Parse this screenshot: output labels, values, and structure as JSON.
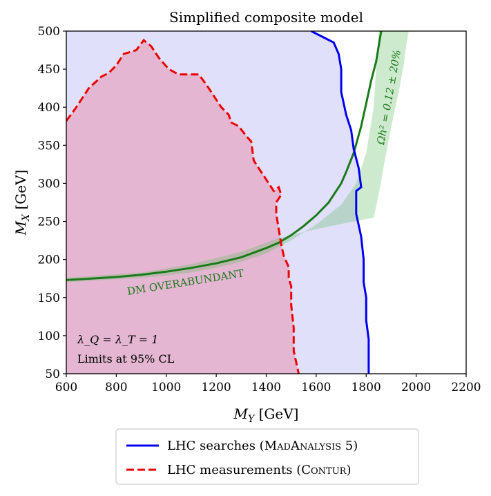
{
  "chart_data": {
    "type": "line",
    "title": "Simplified composite model",
    "xlabel": "M_Y [GeV]",
    "ylabel": "M_X [GeV]",
    "xlim": [
      600,
      2200
    ],
    "ylim": [
      50,
      500
    ],
    "xticks": [
      600,
      800,
      1000,
      1200,
      1400,
      1600,
      1800,
      2000,
      2200
    ],
    "yticks": [
      50,
      100,
      150,
      200,
      250,
      300,
      350,
      400,
      450,
      500
    ],
    "series": [
      {
        "name": "LHC searches (MadAnalysis 5)",
        "label_main": "LHC searches (",
        "label_sc1": "M",
        "label_sc2": "AD",
        "label_sc3": "A",
        "label_sc4": "NALYSIS",
        "label_end": " 5)",
        "style": "solid",
        "color": "#0000ee",
        "x": [
          1580,
          1670,
          1690,
          1700,
          1700,
          1720,
          1740,
          1750,
          1770,
          1780,
          1760,
          1760,
          1780,
          1790,
          1790,
          1800,
          1800,
          1810,
          1810
        ],
        "y": [
          500,
          485,
          470,
          450,
          420,
          390,
          370,
          345,
          320,
          295,
          290,
          260,
          230,
          200,
          170,
          150,
          120,
          95,
          50
        ]
      },
      {
        "name": "LHC measurements (Contur)",
        "label_main": "LHC measurements (",
        "label_sc1": "C",
        "label_sc2": "ONTUR",
        "label_end": ")",
        "style": "dashed",
        "color": "#ee0000",
        "x": [
          600,
          640,
          690,
          740,
          770,
          800,
          830,
          880,
          910,
          940,
          970,
          1010,
          1050,
          1070,
          1090,
          1130,
          1160,
          1190,
          1220,
          1250,
          1260,
          1290,
          1320,
          1340,
          1350,
          1370,
          1390,
          1410,
          1430,
          1450,
          1460,
          1440,
          1440,
          1450,
          1460,
          1470,
          1490,
          1490,
          1500,
          1500,
          1510,
          1510,
          1530
        ],
        "y": [
          382,
          400,
          425,
          440,
          445,
          455,
          470,
          475,
          488,
          480,
          465,
          450,
          443,
          443,
          443,
          443,
          430,
          415,
          400,
          390,
          380,
          375,
          362,
          355,
          330,
          320,
          310,
          300,
          290,
          295,
          285,
          275,
          260,
          240,
          220,
          205,
          190,
          175,
          165,
          140,
          110,
          80,
          50
        ]
      },
      {
        "name": "Omega h^2 = 0.12 +/- 20%",
        "style": "solid",
        "color": "#1a7a1a",
        "x": [
          600,
          700,
          800,
          900,
          1000,
          1100,
          1200,
          1300,
          1400,
          1450,
          1500,
          1550,
          1600,
          1650,
          1680,
          1700,
          1720,
          1750,
          1780,
          1800,
          1820,
          1840,
          1850,
          1860
        ],
        "y": [
          173,
          175,
          177,
          180,
          184,
          189,
          195,
          203,
          215,
          222,
          232,
          244,
          258,
          275,
          290,
          300,
          315,
          340,
          375,
          405,
          435,
          460,
          480,
          500
        ],
        "band_lower_x": [
          600,
          700,
          800,
          900,
          1000,
          1100,
          1200,
          1300,
          1400,
          1500,
          1600,
          1700,
          1760,
          1800,
          1830,
          1850
        ],
        "band_lower_y": [
          170,
          172,
          174,
          176,
          179,
          183,
          189,
          197,
          208,
          225,
          246,
          272,
          300,
          340,
          400,
          500
        ],
        "band_upper_x": [
          1830,
          1850,
          1880,
          1910,
          1930,
          1950,
          1960,
          1970
        ],
        "band_upper_y": [
          255,
          285,
          340,
          390,
          420,
          455,
          480,
          500
        ]
      }
    ],
    "regions": [
      {
        "name": "excluded-searches",
        "color": "#e0e0fa"
      },
      {
        "name": "excluded-measurements",
        "color": "#e4b6d2"
      }
    ],
    "annotations": {
      "relic_label": "Ωh² = 0.12 ± 20%",
      "overabundant": "DM OVERABUNDANT",
      "couplings": "λ_Q = λ_T = 1",
      "cl": "Limits at 95% CL"
    },
    "legend_position": "bottom-center"
  }
}
